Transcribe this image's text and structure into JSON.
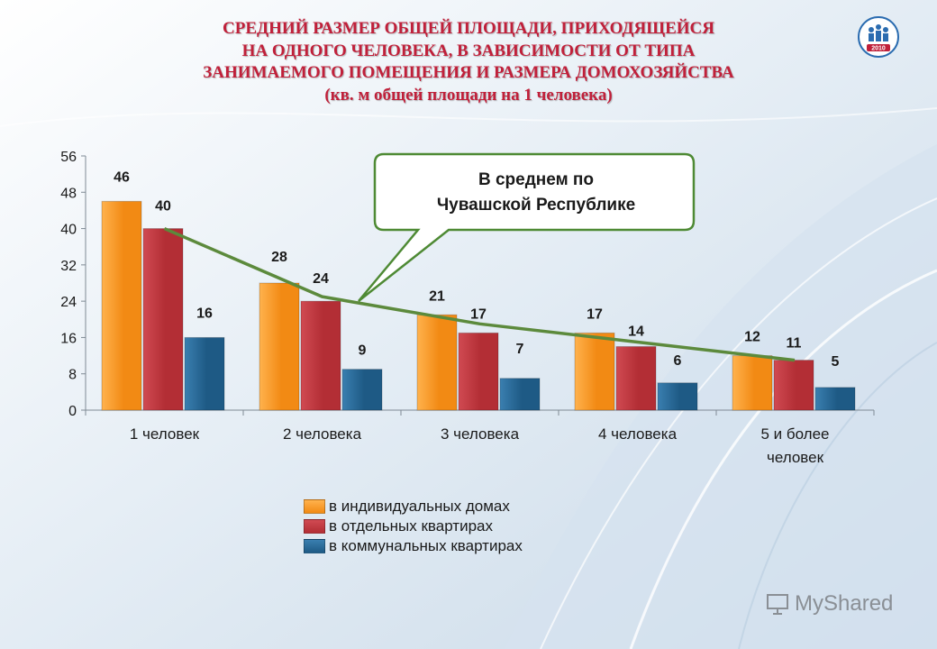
{
  "title_lines": [
    "СРЕДНИЙ РАЗМЕР ОБЩЕЙ ПЛОЩАДИ, ПРИХОДЯЩЕЙСЯ",
    "НА ОДНОГО ЧЕЛОВЕКА, В ЗАВИСИМОСТИ ОТ ТИПА",
    "ЗАНИМАЕМОГО ПОМЕЩЕНИЯ И РАЗМЕРА ДОМОХОЗЯЙСТВА",
    "(кв. м общей площади на 1 человека)"
  ],
  "logo_text": "2010",
  "callout": {
    "line1": "В среднем по",
    "line2": "Чувашской Республике"
  },
  "watermark": "MyShared",
  "colors": {
    "title": "#c0203a",
    "avg_line": "#5c8a3c",
    "callout_border": "#4e8a34"
  },
  "chart_data": {
    "type": "bar",
    "categories": [
      "1 человек",
      "2 человека",
      "3 человека",
      "4 человека",
      "5 и более|человек"
    ],
    "series": [
      {
        "name": "в индивидуальных домах",
        "values": [
          46,
          28,
          21,
          17,
          12
        ],
        "color": "#f28a14"
      },
      {
        "name": "в отдельных квартирах",
        "values": [
          40,
          24,
          17,
          14,
          11
        ],
        "color": "#b32e35"
      },
      {
        "name": "в коммунальных квартирах",
        "values": [
          16,
          9,
          7,
          6,
          5
        ],
        "color": "#1e5a85"
      }
    ],
    "average_line": {
      "label": "В среднем по Чувашской Республике",
      "values": [
        40,
        25,
        19,
        15,
        11
      ]
    },
    "ylim": [
      0,
      56
    ],
    "yticks": [
      0,
      8,
      16,
      24,
      32,
      40,
      48,
      56
    ],
    "grid": false,
    "legend_position": "bottom"
  }
}
